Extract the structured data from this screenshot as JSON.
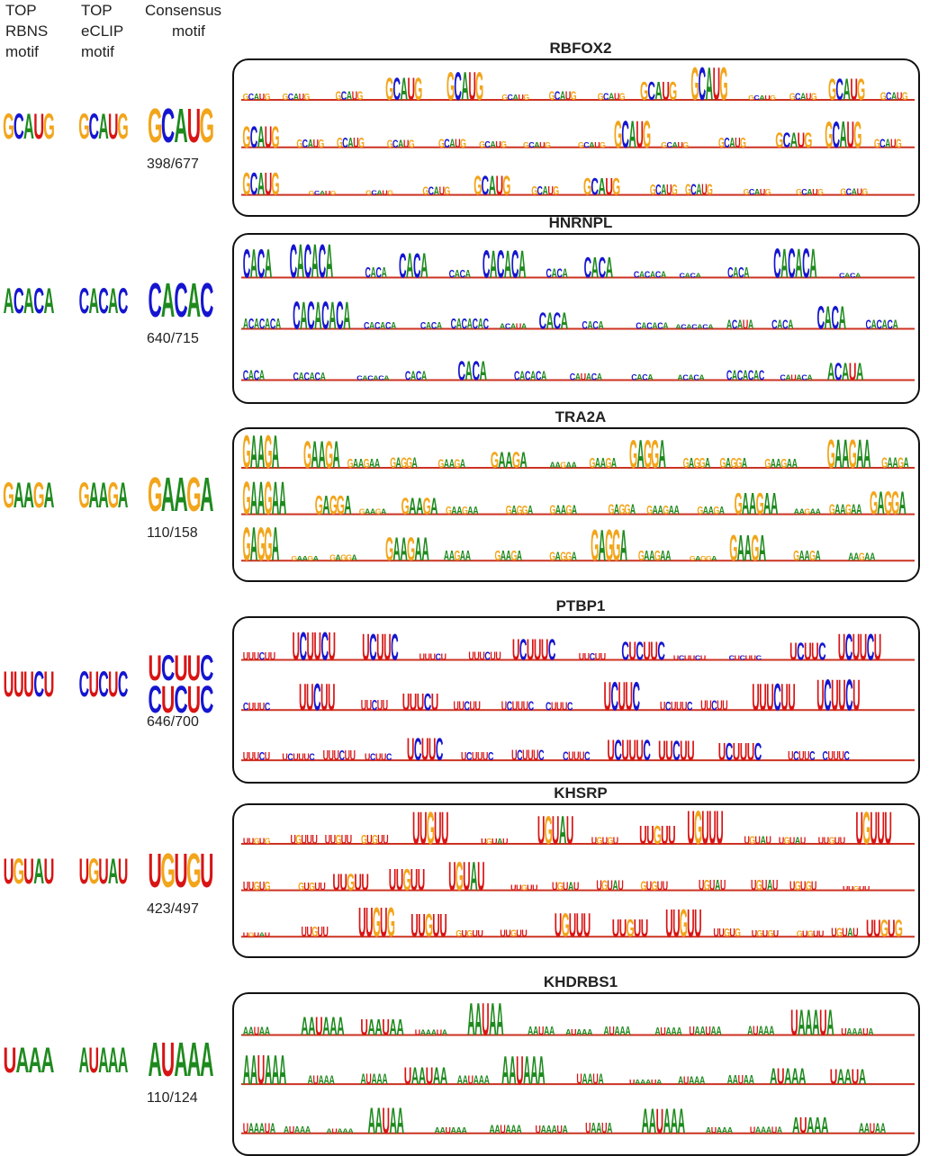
{
  "headers": {
    "rbns": [
      "TOP",
      "RBNS",
      "motif"
    ],
    "eclip": [
      "TOP",
      "eCLIP",
      "motif"
    ],
    "consensus": [
      "Consensus",
      "motif"
    ]
  },
  "colors": {
    "A": "#1e8a1e",
    "C": "#1515d0",
    "G": "#f2a51a",
    "U": "#d81414",
    "baseline": "#cc3322"
  },
  "rows": [
    {
      "protein": "RBFOX2",
      "ratio": "398/677",
      "rbns_motif": "GCAUG",
      "eclip_motif": "GCAUG",
      "consensus_motif": [
        "GCAUG"
      ],
      "motif_segments": [
        "GCAUG",
        "GCAUG",
        "GCAUG",
        "GCAUG",
        "GCAUG",
        "GCAUG",
        "GCAUG",
        "GCAUG",
        "GCAUG",
        "GCAUG"
      ]
    },
    {
      "protein": "HNRNPL",
      "ratio": "640/715",
      "rbns_motif": "ACACA",
      "eclip_motif": "CACAC",
      "consensus_motif": [
        "CACAC"
      ],
      "motif_segments": [
        "ACACACA",
        "CACACA",
        "CACACACA",
        "CACACA",
        "CACACAC",
        "CACACA",
        "CACACA",
        "ACACA",
        "CACACA",
        "CACACA",
        "CACA",
        "CACA",
        "CAUACA",
        "CACA",
        "CACA",
        "CACA",
        "ACAUA",
        "CACACA"
      ]
    },
    {
      "protein": "TRA2A",
      "ratio": "110/158",
      "rbns_motif": "GAAGA",
      "eclip_motif": "GAAGA",
      "consensus_motif": [
        "GAAGA"
      ],
      "motif_segments": [
        "GAAGAA",
        "GAAGA",
        "AAGAA",
        "GAGGA",
        "GAAGA",
        "GAAGA",
        "GAAGA",
        "GAGGA",
        "GAAGAA",
        "GAGGA"
      ]
    },
    {
      "protein": "PTBP1",
      "ratio": "646/700",
      "rbns_motif": "UUUCU",
      "eclip_motif": "CUCUC",
      "consensus_motif": [
        "UCUUC",
        "CUCUC"
      ],
      "motif_segments": [
        "UCUUUC",
        "CUUUC",
        "UCUUUC",
        "UCUUC",
        "CUCUUC",
        "UCUUCU",
        "UUUCUU",
        "UCUUUC",
        "UUCUU",
        "CUUUC",
        "UUCUU",
        "UUUCU"
      ]
    },
    {
      "protein": "KHSRP",
      "ratio": "423/497",
      "rbns_motif": "UGUAU",
      "eclip_motif": "UGUAU",
      "consensus_motif": [
        "UGUGU"
      ],
      "motif_segments": [
        "UUGUU",
        "UGUAU",
        "GUGUU",
        "UGUGU",
        "UGUAU",
        "UUGUU",
        "UGUUU",
        "UUGUG"
      ]
    },
    {
      "protein": "KHDRBS1",
      "ratio": "110/124",
      "rbns_motif": "UAAA",
      "eclip_motif": "AUAAA",
      "consensus_motif": [
        "AUAAA"
      ],
      "motif_segments": [
        "AAUAAA",
        "AUAAA",
        "UAAUAA",
        "AUAAA",
        "UAAAUA",
        "AAUAA",
        "AUAAA",
        "UAAUA"
      ]
    }
  ]
}
